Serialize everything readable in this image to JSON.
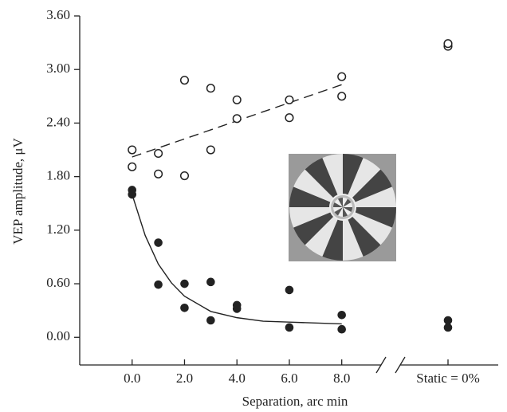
{
  "chart_data": {
    "type": "scatter",
    "xlabel": "Separation, arc min",
    "ylabel": "VEP amplitude, μV",
    "xlim": [
      -2,
      9.5
    ],
    "ylim": [
      -0.31,
      3.6
    ],
    "xticks": [
      {
        "value": 0,
        "label": "0.0"
      },
      {
        "value": 2,
        "label": "2.0"
      },
      {
        "value": 4,
        "label": "4.0"
      },
      {
        "value": 6,
        "label": "6.0"
      },
      {
        "value": 8,
        "label": "8.0"
      }
    ],
    "yticks": [
      {
        "value": 0,
        "label": "0.00"
      },
      {
        "value": 0.6,
        "label": "0.60"
      },
      {
        "value": 1.2,
        "label": "1.20"
      },
      {
        "value": 1.8,
        "label": "1.80"
      },
      {
        "value": 2.4,
        "label": "2.40"
      },
      {
        "value": 3.0,
        "label": "3.00"
      },
      {
        "value": 3.6,
        "label": "3.60"
      }
    ],
    "static_label": "Static = 0%",
    "color": "#222222",
    "series": [
      {
        "marker": "open",
        "x": [
          0,
          0,
          1,
          1,
          2,
          2,
          3,
          3,
          4,
          4,
          6,
          6,
          8,
          8
        ],
        "values": [
          2.1,
          1.91,
          2.06,
          1.83,
          2.88,
          1.81,
          2.79,
          2.1,
          2.66,
          2.45,
          2.66,
          2.46,
          2.92,
          2.7
        ],
        "static_values": [
          3.26,
          3.29
        ]
      },
      {
        "marker": "filled",
        "x": [
          0,
          0,
          1,
          1,
          2,
          2,
          3,
          3,
          4,
          4,
          6,
          6,
          8,
          8
        ],
        "values": [
          1.65,
          1.6,
          1.06,
          0.59,
          0.6,
          0.33,
          0.62,
          0.19,
          0.36,
          0.32,
          0.53,
          0.11,
          0.25,
          0.09
        ],
        "static_values": [
          0.19,
          0.11
        ]
      }
    ],
    "fits": [
      {
        "style": "dashed",
        "x": [
          0,
          8
        ],
        "values": [
          2.02,
          2.83
        ]
      },
      {
        "style": "solid",
        "x": [
          0,
          0.5,
          1,
          1.5,
          2,
          3,
          4,
          5,
          6,
          7,
          8
        ],
        "values": [
          1.6,
          1.14,
          0.82,
          0.61,
          0.46,
          0.29,
          0.22,
          0.18,
          0.17,
          0.16,
          0.15
        ]
      }
    ]
  }
}
